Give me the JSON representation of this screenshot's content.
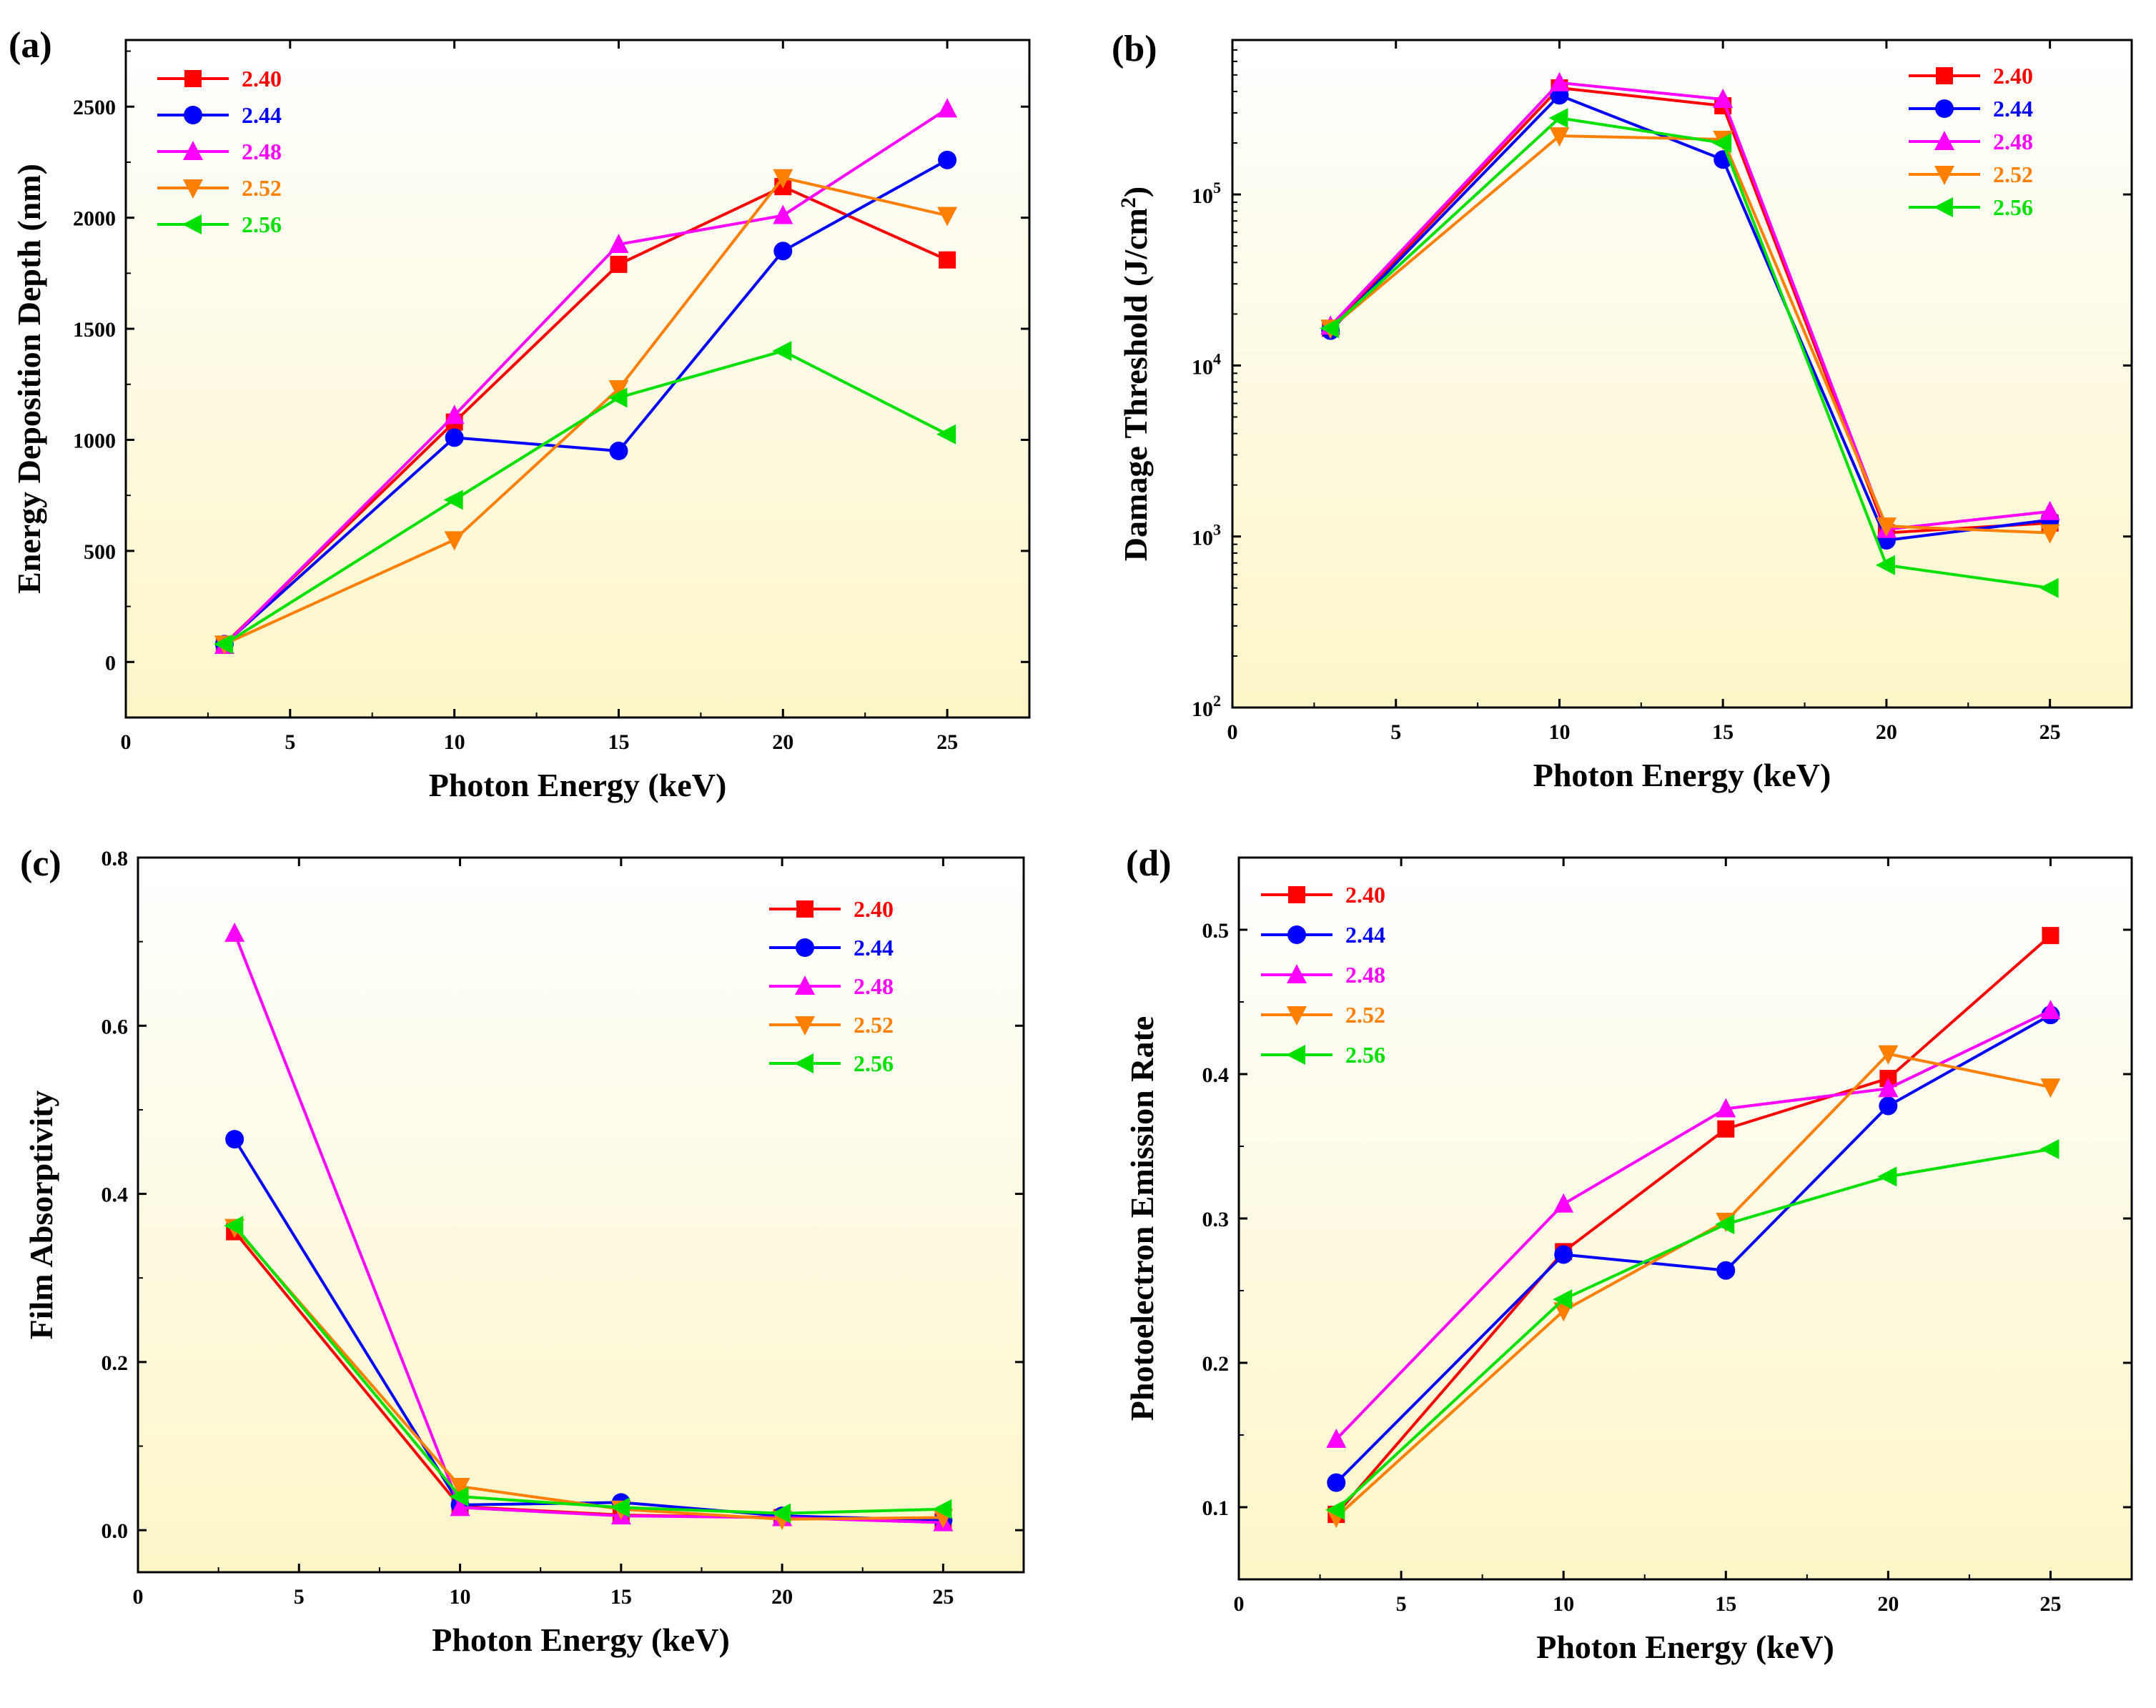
{
  "colors": {
    "2.40": "#ff0000",
    "2.44": "#0000ff",
    "2.48": "#ff00ff",
    "2.52": "#ff8000",
    "2.56": "#00e000",
    "bg_top": "#ffffff",
    "bg_bottom": "#fdf6c8"
  },
  "chart_data": [
    {
      "panel": "(a)",
      "type": "line",
      "xlabel": "Photon Energy (keV)",
      "ylabel": "Energy Deposition Depth (nm)",
      "xlim": [
        0,
        27.5
      ],
      "ylim": [
        -250,
        2800
      ],
      "yscale": "linear",
      "x_ticks": [
        0,
        5,
        10,
        15,
        20,
        25
      ],
      "y_ticks": [
        0,
        500,
        1000,
        1500,
        2000,
        2500
      ],
      "y_tick_labels": [
        "0",
        "500",
        "1000",
        "1500",
        "2000",
        "2500"
      ],
      "legend_position": "top-left",
      "x": [
        3,
        10,
        15,
        20,
        25
      ],
      "series": [
        {
          "name": "2.40",
          "marker": "square",
          "values": [
            80,
            1080,
            1790,
            2140,
            1810
          ]
        },
        {
          "name": "2.44",
          "marker": "circle",
          "values": [
            80,
            1010,
            950,
            1850,
            2260
          ]
        },
        {
          "name": "2.48",
          "marker": "triangle-up",
          "values": [
            75,
            1110,
            1880,
            2010,
            2490
          ]
        },
        {
          "name": "2.52",
          "marker": "triangle-down",
          "values": [
            80,
            550,
            1230,
            2180,
            2010
          ]
        },
        {
          "name": "2.56",
          "marker": "triangle-left",
          "values": [
            80,
            730,
            1190,
            1400,
            1025
          ]
        }
      ]
    },
    {
      "panel": "(b)",
      "type": "line",
      "xlabel": "Photon Energy (keV)",
      "ylabel": "Damage Threshold (J/cm",
      "ylabel_sup": "2",
      "ylabel_end": ")",
      "xlim": [
        0,
        27.5
      ],
      "ylim": [
        100,
        800000
      ],
      "yscale": "log",
      "x_ticks": [
        0,
        5,
        10,
        15,
        20,
        25
      ],
      "y_ticks": [
        100,
        1000,
        10000,
        100000
      ],
      "y_tick_labels": [
        {
          "base": "10",
          "exp": "2"
        },
        {
          "base": "10",
          "exp": "3"
        },
        {
          "base": "10",
          "exp": "4"
        },
        {
          "base": "10",
          "exp": "5"
        }
      ],
      "legend_position": "top-right",
      "x": [
        3,
        10,
        15,
        20,
        25
      ],
      "series": [
        {
          "name": "2.40",
          "marker": "square",
          "values": [
            16500,
            420000,
            330000,
            1050,
            1200
          ]
        },
        {
          "name": "2.44",
          "marker": "circle",
          "values": [
            16000,
            380000,
            160000,
            950,
            1250
          ]
        },
        {
          "name": "2.48",
          "marker": "triangle-up",
          "values": [
            17000,
            450000,
            360000,
            1100,
            1400
          ]
        },
        {
          "name": "2.52",
          "marker": "triangle-down",
          "values": [
            16500,
            220000,
            210000,
            1150,
            1050
          ]
        },
        {
          "name": "2.56",
          "marker": "triangle-left",
          "values": [
            16500,
            280000,
            200000,
            680,
            500
          ]
        }
      ]
    },
    {
      "panel": "(c)",
      "type": "line",
      "xlabel": "Photon Energy (keV)",
      "ylabel": "Film Absorptivity",
      "xlim": [
        0,
        27.5
      ],
      "ylim": [
        -0.05,
        0.8
      ],
      "yscale": "linear",
      "x_ticks": [
        0,
        5,
        10,
        15,
        20,
        25
      ],
      "y_ticks": [
        0,
        0.2,
        0.4,
        0.6,
        0.8
      ],
      "y_tick_labels": [
        "0.0",
        "0.2",
        "0.4",
        "0.6",
        "0.8"
      ],
      "legend_position": "top-right",
      "x": [
        3,
        10,
        15,
        20,
        25
      ],
      "series": [
        {
          "name": "2.40",
          "marker": "square",
          "values": [
            0.355,
            0.028,
            0.018,
            0.015,
            0.01
          ]
        },
        {
          "name": "2.44",
          "marker": "circle",
          "values": [
            0.465,
            0.03,
            0.033,
            0.017,
            0.012
          ]
        },
        {
          "name": "2.48",
          "marker": "triangle-up",
          "values": [
            0.71,
            0.027,
            0.017,
            0.015,
            0.009
          ]
        },
        {
          "name": "2.52",
          "marker": "triangle-down",
          "values": [
            0.36,
            0.052,
            0.025,
            0.013,
            0.015
          ]
        },
        {
          "name": "2.56",
          "marker": "triangle-left",
          "values": [
            0.362,
            0.04,
            0.027,
            0.02,
            0.025
          ]
        }
      ]
    },
    {
      "panel": "(d)",
      "type": "line",
      "xlabel": "Photon Energy (keV)",
      "ylabel": "Photoelectron Emission Rate",
      "xlim": [
        0,
        27.5
      ],
      "ylim": [
        0.05,
        0.55
      ],
      "yscale": "linear",
      "x_ticks": [
        0,
        5,
        10,
        15,
        20,
        25
      ],
      "y_ticks": [
        0.1,
        0.2,
        0.3,
        0.4,
        0.5
      ],
      "y_tick_labels": [
        "0.1",
        "0.2",
        "0.3",
        "0.4",
        "0.5"
      ],
      "legend_position": "top-left",
      "x": [
        3,
        10,
        15,
        20,
        25
      ],
      "series": [
        {
          "name": "2.40",
          "marker": "square",
          "values": [
            0.095,
            0.277,
            0.362,
            0.397,
            0.496
          ]
        },
        {
          "name": "2.44",
          "marker": "circle",
          "values": [
            0.117,
            0.275,
            0.264,
            0.378,
            0.441
          ]
        },
        {
          "name": "2.48",
          "marker": "triangle-up",
          "values": [
            0.147,
            0.31,
            0.376,
            0.39,
            0.444
          ]
        },
        {
          "name": "2.52",
          "marker": "triangle-down",
          "values": [
            0.093,
            0.236,
            0.298,
            0.414,
            0.391
          ]
        },
        {
          "name": "2.56",
          "marker": "triangle-left",
          "values": [
            0.098,
            0.244,
            0.296,
            0.329,
            0.348
          ]
        }
      ]
    }
  ]
}
